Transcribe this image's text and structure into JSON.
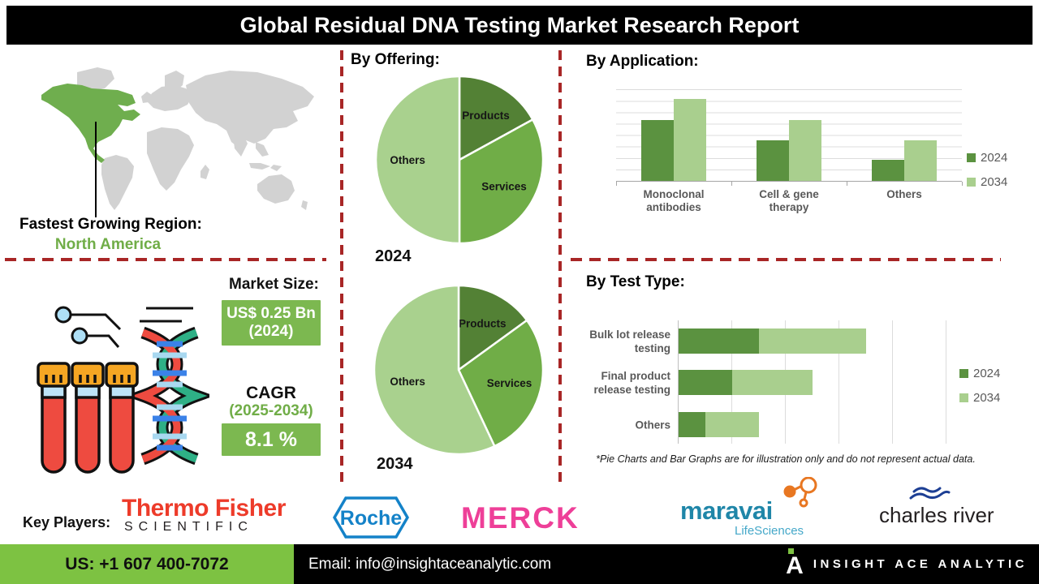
{
  "title": "Global Residual DNA Testing Market Research Report",
  "region": {
    "label": "Fastest Growing Region:",
    "value": "North America"
  },
  "market": {
    "heading": "Market Size:",
    "size_value": "US$ 0.25 Bn",
    "size_year": "(2024)",
    "cagr_heading": "CAGR",
    "cagr_period": "(2025-2034)",
    "cagr_value": "8.1 %"
  },
  "sections": {
    "offering": "By Offering:",
    "application": "By Application:",
    "test_type": "By Test Type:"
  },
  "footnote": "*Pie Charts and Bar Graphs are for illustration only and do not represent actual data.",
  "key_players": {
    "label": "Key Players:",
    "thermo_line1": "Thermo Fisher",
    "thermo_line2": "SCIENTIFIC",
    "roche": "Roche",
    "merck": "MERCK",
    "maravai_line1": "maravai",
    "maravai_line2": "LifeSciences",
    "charles_river": "charles river"
  },
  "footer": {
    "phone": "US: +1 607 400-7072",
    "email": "Email: info@insightaceanalytic.com",
    "brand": "INSIGHT ACE ANALYTIC"
  },
  "colors": {
    "green_dark": "#538135",
    "green_mid": "#70ad47",
    "green_light": "#a9d18e",
    "bar2024": "#5b9240",
    "bar2034": "#a9cf8e",
    "map_green": "#6fae4e",
    "map_grey": "#d2d2d2",
    "dash_red": "#a82626",
    "box_green": "#7cb850",
    "footer_green": "#7dc242"
  },
  "chart_data": [
    {
      "type": "pie",
      "title": "By Offering: 2024",
      "year": "2024",
      "labels": [
        "Products",
        "Services",
        "Others"
      ],
      "values": [
        17,
        33,
        50
      ],
      "colors": [
        "#538135",
        "#70ad47",
        "#a9d18e"
      ]
    },
    {
      "type": "pie",
      "title": "By Offering: 2034",
      "year": "2034",
      "labels": [
        "Products",
        "Services",
        "Others"
      ],
      "values": [
        15,
        28,
        57
      ],
      "colors": [
        "#538135",
        "#70ad47",
        "#a9d18e"
      ]
    },
    {
      "type": "bar",
      "title": "By Application:",
      "categories": [
        "Monoclonal antibodies",
        "Cell & gene therapy",
        "Others"
      ],
      "series": [
        {
          "name": "2024",
          "values": [
            66,
            44,
            23
          ]
        },
        {
          "name": "2034",
          "values": [
            89,
            66,
            44
          ]
        }
      ],
      "ylim": [
        0,
        100
      ],
      "grid": true,
      "legend_position": "right"
    },
    {
      "type": "bar",
      "orientation": "horizontal",
      "stacked": true,
      "title": "By Test Type:",
      "categories": [
        "Bulk lot release testing",
        "Final product release testing",
        "Others"
      ],
      "series": [
        {
          "name": "2024",
          "values": [
            15,
            10,
            5
          ]
        },
        {
          "name": "2034",
          "values": [
            20,
            15,
            10
          ]
        }
      ],
      "xlim": [
        0,
        50
      ],
      "grid": true,
      "legend_position": "right"
    }
  ]
}
